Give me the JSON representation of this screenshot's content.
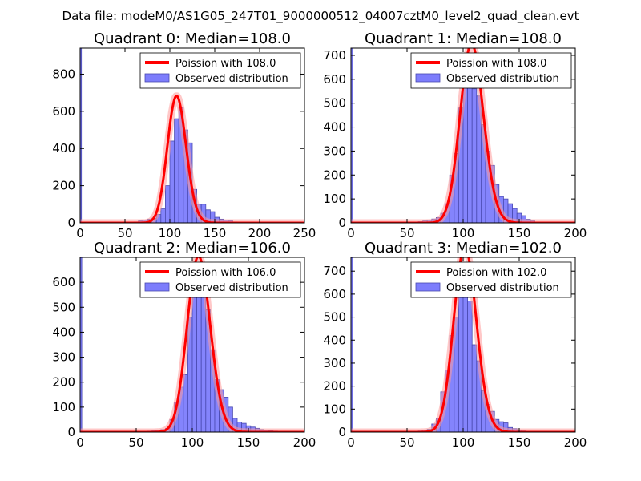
{
  "suptitle": "Data file: modeM0/AS1G05_247T01_9000000512_04007cztM0_level2_quad_clean.evt",
  "colors": {
    "bars": "#7d7dfc",
    "bar_edge": "#4a4ab0",
    "outlier_bar": "#7d7dfc",
    "poisson_line": "#ff0000",
    "axis": "#000000",
    "legend_edge": "#000000"
  },
  "chart_data": [
    {
      "type": "bar",
      "title": "Quadrant 0: Median=108.0",
      "median": 108.0,
      "xlim": [
        0,
        250
      ],
      "ylim": [
        0,
        940
      ],
      "xticks": [
        0,
        50,
        100,
        150,
        200,
        250
      ],
      "yticks": [
        0,
        200,
        400,
        600,
        800
      ],
      "bin_width": 5,
      "bins": [
        [
          55,
          2
        ],
        [
          60,
          5
        ],
        [
          65,
          12
        ],
        [
          70,
          15
        ],
        [
          75,
          20
        ],
        [
          80,
          25
        ],
        [
          85,
          45
        ],
        [
          90,
          75
        ],
        [
          95,
          200
        ],
        [
          100,
          440
        ],
        [
          105,
          560
        ],
        [
          110,
          620
        ],
        [
          115,
          500
        ],
        [
          120,
          430
        ],
        [
          125,
          180
        ],
        [
          130,
          100
        ],
        [
          135,
          100
        ],
        [
          140,
          70
        ],
        [
          145,
          60
        ],
        [
          150,
          30
        ],
        [
          155,
          20
        ],
        [
          160,
          15
        ],
        [
          165,
          12
        ],
        [
          170,
          5
        ],
        [
          175,
          3
        ]
      ],
      "outlier": {
        "x": 0,
        "count": 940
      },
      "legend": [
        "Poission with 108.0",
        "Observed distribution"
      ]
    },
    {
      "type": "bar",
      "title": "Quadrant 1: Median=108.0",
      "median": 108.0,
      "xlim": [
        0,
        200
      ],
      "ylim": [
        0,
        730
      ],
      "xticks": [
        0,
        50,
        100,
        150,
        200
      ],
      "yticks": [
        0,
        100,
        200,
        300,
        400,
        500,
        600,
        700
      ],
      "bin_width": 4,
      "bins": [
        [
          56,
          3
        ],
        [
          60,
          5
        ],
        [
          64,
          8
        ],
        [
          68,
          12
        ],
        [
          72,
          16
        ],
        [
          76,
          22
        ],
        [
          80,
          40
        ],
        [
          84,
          80
        ],
        [
          88,
          200
        ],
        [
          92,
          290
        ],
        [
          96,
          480
        ],
        [
          100,
          570
        ],
        [
          104,
          680
        ],
        [
          108,
          560
        ],
        [
          112,
          530
        ],
        [
          116,
          410
        ],
        [
          120,
          300
        ],
        [
          124,
          240
        ],
        [
          128,
          160
        ],
        [
          132,
          110
        ],
        [
          136,
          100
        ],
        [
          140,
          80
        ],
        [
          144,
          60
        ],
        [
          148,
          40
        ],
        [
          152,
          30
        ],
        [
          156,
          15
        ],
        [
          160,
          8
        ]
      ],
      "outlier": {
        "x": 0,
        "count": 730
      },
      "legend": [
        "Poission with 108.0",
        "Observed distribution"
      ]
    },
    {
      "type": "bar",
      "title": "Quadrant 2: Median=106.0",
      "median": 106.0,
      "xlim": [
        0,
        200
      ],
      "ylim": [
        0,
        700
      ],
      "xticks": [
        0,
        50,
        100,
        150,
        200
      ],
      "yticks": [
        0,
        100,
        200,
        300,
        400,
        500,
        600
      ],
      "bin_width": 4,
      "bins": [
        [
          56,
          3
        ],
        [
          60,
          4
        ],
        [
          64,
          6
        ],
        [
          68,
          8
        ],
        [
          72,
          10
        ],
        [
          76,
          15
        ],
        [
          80,
          50
        ],
        [
          84,
          120
        ],
        [
          88,
          180
        ],
        [
          92,
          230
        ],
        [
          96,
          460
        ],
        [
          100,
          620
        ],
        [
          104,
          640
        ],
        [
          108,
          540
        ],
        [
          112,
          490
        ],
        [
          116,
          330
        ],
        [
          120,
          210
        ],
        [
          124,
          170
        ],
        [
          128,
          140
        ],
        [
          132,
          100
        ],
        [
          136,
          55
        ],
        [
          140,
          40
        ],
        [
          144,
          35
        ],
        [
          148,
          25
        ],
        [
          152,
          20
        ],
        [
          156,
          15
        ],
        [
          160,
          10
        ],
        [
          164,
          8
        ],
        [
          168,
          6
        ],
        [
          172,
          4
        ],
        [
          176,
          3
        ]
      ],
      "outlier": {
        "x": 0,
        "count": 700
      },
      "legend": [
        "Poission with 106.0",
        "Observed distribution"
      ]
    },
    {
      "type": "bar",
      "title": "Quadrant 3: Median=102.0",
      "median": 102.0,
      "xlim": [
        0,
        200
      ],
      "ylim": [
        0,
        760
      ],
      "xticks": [
        0,
        50,
        100,
        150,
        200
      ],
      "yticks": [
        0,
        100,
        200,
        300,
        400,
        500,
        600,
        700
      ],
      "bin_width": 4,
      "bins": [
        [
          56,
          3
        ],
        [
          60,
          5
        ],
        [
          64,
          8
        ],
        [
          68,
          12
        ],
        [
          72,
          35
        ],
        [
          76,
          60
        ],
        [
          80,
          175
        ],
        [
          84,
          270
        ],
        [
          88,
          420
        ],
        [
          92,
          500
        ],
        [
          96,
          600
        ],
        [
          100,
          730
        ],
        [
          104,
          570
        ],
        [
          108,
          380
        ],
        [
          112,
          310
        ],
        [
          116,
          180
        ],
        [
          120,
          120
        ],
        [
          124,
          90
        ],
        [
          128,
          55
        ],
        [
          132,
          45
        ],
        [
          136,
          40
        ],
        [
          140,
          20
        ],
        [
          144,
          15
        ],
        [
          148,
          8
        ],
        [
          152,
          5
        ],
        [
          156,
          3
        ]
      ],
      "outlier": {
        "x": 0,
        "count": 760
      },
      "legend": [
        "Poission with 102.0",
        "Observed distribution"
      ]
    }
  ]
}
